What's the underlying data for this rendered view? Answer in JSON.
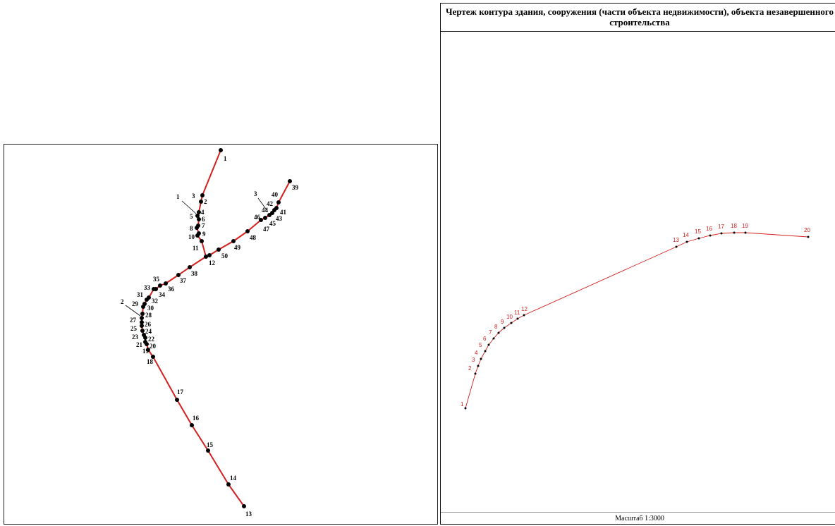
{
  "left_diagram": {
    "labels": {
      "1": "1",
      "2": "2",
      "3": "3",
      "4": "4",
      "5": "5",
      "6": "6",
      "7": "7",
      "8": "8",
      "9": "9",
      "10": "10",
      "11": "11",
      "12": "12",
      "13": "13",
      "14": "14",
      "15": "15",
      "16": "16",
      "17": "17",
      "18": "18",
      "19": "19",
      "20": "20",
      "21": "21",
      "22": "22",
      "23": "23",
      "24": "24",
      "25": "25",
      "26": "26",
      "27": "27",
      "28": "28",
      "29": "29",
      "30": "30",
      "31": "31",
      "32": "32",
      "33": "33",
      "34": "34",
      "35": "35",
      "36": "36",
      "37": "37",
      "38": "38",
      "39": "39",
      "40": "40",
      "41": "41",
      "42": "42",
      "43": "43",
      "44": "44",
      "45": "45",
      "46": "46",
      "47": "47",
      "48": "48",
      "49": "49",
      "50": "50"
    },
    "contour_labels": [
      "1",
      "2",
      "3"
    ],
    "line_color": "#d42020",
    "point_color": "#000000"
  },
  "right_panel": {
    "title": "Чертеж контура здания, сооружения (части объекта недвижимости), объекта незавершенного строительства",
    "scale_text": "Масштаб 1:3000",
    "labels": [
      "1",
      "2",
      "3",
      "4",
      "5",
      "6",
      "7",
      "8",
      "9",
      "10",
      "11",
      "12",
      "13",
      "14",
      "15",
      "16",
      "17",
      "18",
      "19",
      "20"
    ],
    "line_color": "#d42020",
    "label_color": "#d42020"
  }
}
